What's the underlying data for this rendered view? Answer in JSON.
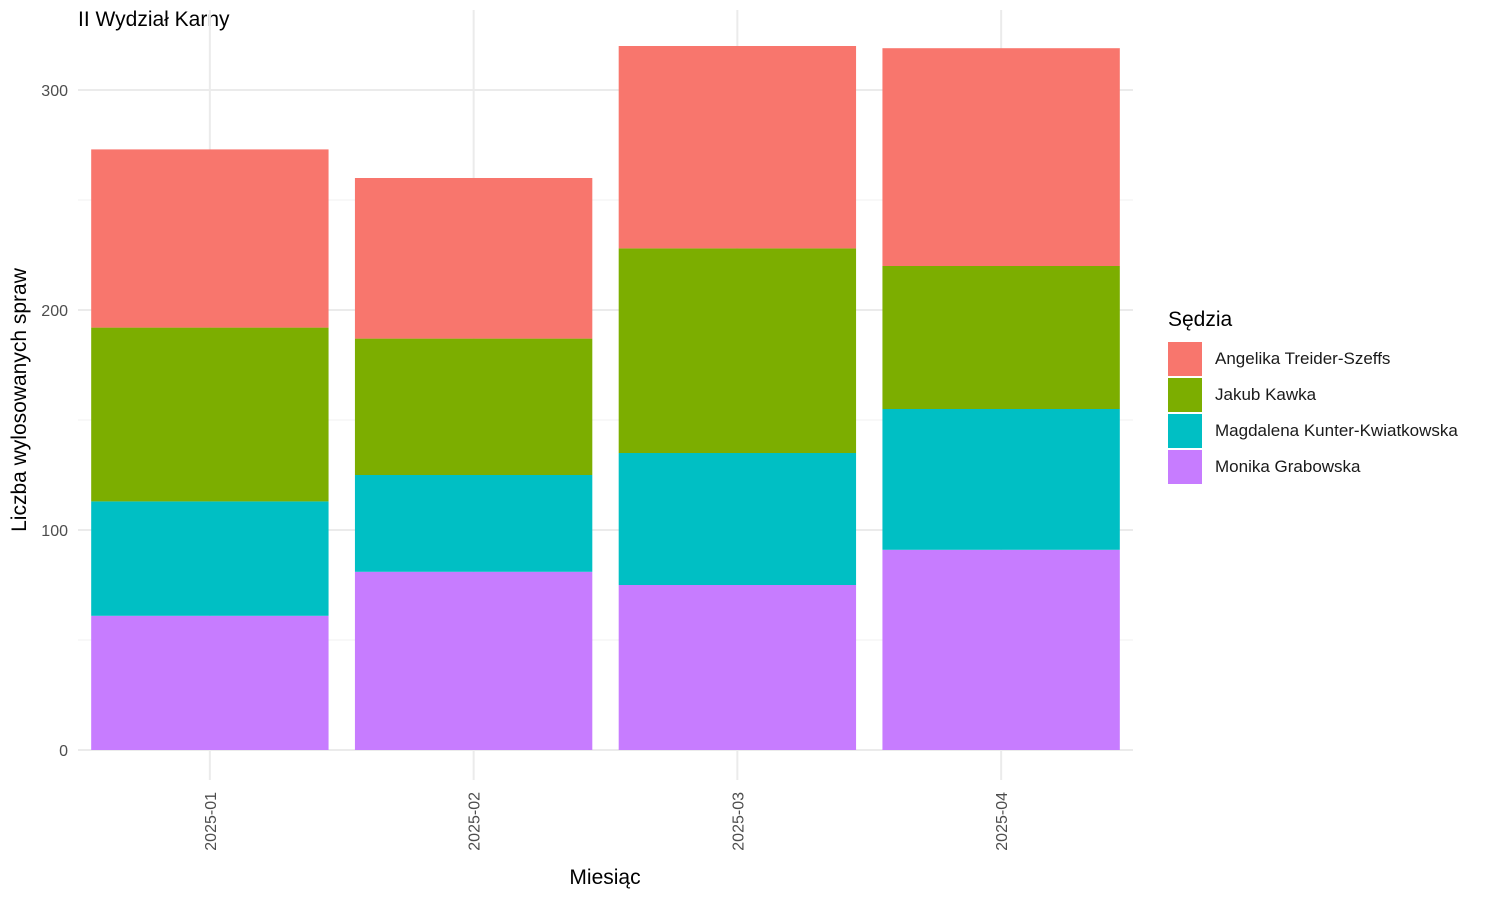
{
  "chart_data": {
    "type": "bar",
    "stacked": true,
    "title": "II Wydział Karny",
    "xlabel": "Miesiąc",
    "ylabel": "Liczba wylosowanych spraw",
    "categories": [
      "2025-01",
      "2025-02",
      "2025-03",
      "2025-04"
    ],
    "ylim": [
      0,
      330
    ],
    "yticks": [
      0,
      100,
      200,
      300
    ],
    "grid": true,
    "legend_title": "Sędzia",
    "legend_position": "right",
    "series": [
      {
        "name": "Monika Grabowska",
        "color": "#C77CFF",
        "values": [
          61,
          81,
          75,
          91
        ]
      },
      {
        "name": "Magdalena Kunter-Kwiatkowska",
        "color": "#00BFC4",
        "values": [
          52,
          44,
          60,
          64
        ]
      },
      {
        "name": "Jakub Kawka",
        "color": "#7CAE00",
        "values": [
          79,
          62,
          93,
          65
        ]
      },
      {
        "name": "Angelika Treider-Szeffs",
        "color": "#F8766D",
        "values": [
          81,
          73,
          92,
          99
        ]
      }
    ],
    "legend_order": [
      "Angelika Treider-Szeffs",
      "Jakub Kawka",
      "Magdalena Kunter-Kwiatkowska",
      "Monika Grabowska"
    ]
  }
}
